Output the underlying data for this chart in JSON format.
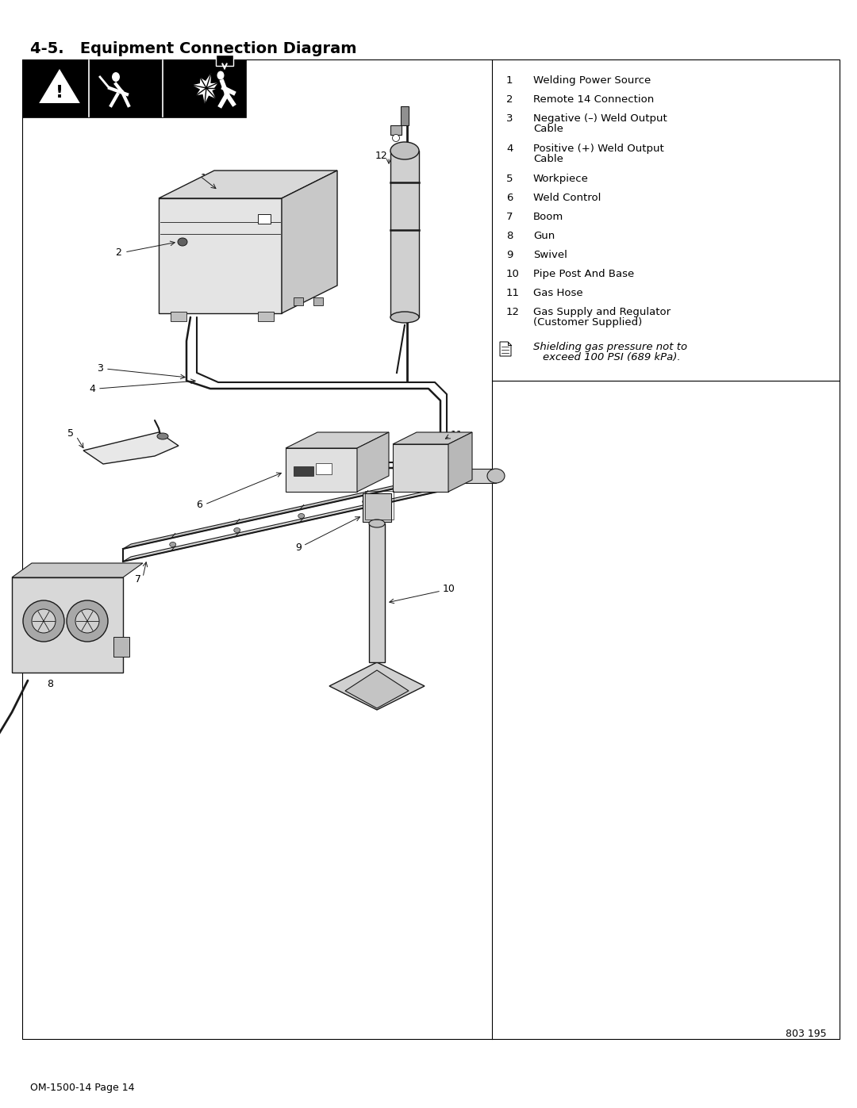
{
  "page_title": "4-5.   Equipment Connection Diagram",
  "page_number": "OM-1500-14 Page 14",
  "doc_number": "803 195",
  "legend_items": [
    {
      "num": "1",
      "text": "Welding Power Source",
      "wrap": false
    },
    {
      "num": "2",
      "text": "Remote 14 Connection",
      "wrap": false
    },
    {
      "num": "3",
      "text": "Negative (–) Weld Output Cable",
      "wrap": true
    },
    {
      "num": "4",
      "text": "Positive (+) Weld Output Cable",
      "wrap": true
    },
    {
      "num": "5",
      "text": "Workpiece",
      "wrap": false
    },
    {
      "num": "6",
      "text": "Weld Control",
      "wrap": false
    },
    {
      "num": "7",
      "text": "Boom",
      "wrap": false
    },
    {
      "num": "8",
      "text": "Gun",
      "wrap": false
    },
    {
      "num": "9",
      "text": "Swivel",
      "wrap": false
    },
    {
      "num": "10",
      "text": "Pipe Post And Base",
      "wrap": false
    },
    {
      "num": "11",
      "text": "Gas Hose",
      "wrap": false
    },
    {
      "num": "12",
      "text": "Gas Supply and Regulator (Customer Supplied)",
      "wrap": true
    }
  ],
  "note_line1": "Shielding gas pressure not to",
  "note_line2": "exceed 100 PSI (689 kPa).",
  "bg_color": "#ffffff",
  "text_color": "#000000",
  "title_fontsize": 14,
  "legend_fontsize": 9.5,
  "note_fontsize": 9.5,
  "page_num_fontsize": 9
}
